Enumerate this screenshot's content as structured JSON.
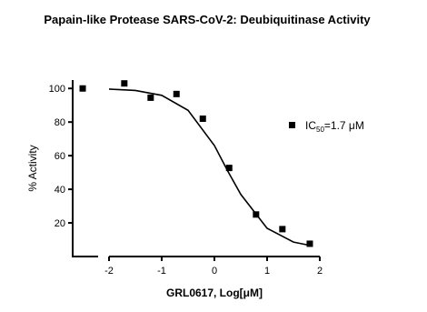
{
  "chart_data": {
    "type": "scatter",
    "title": "Papain-like Protease SARS-CoV-2: Deubiquitinase Activity",
    "x_label": "GRL0617, Log[μM]",
    "y_label": "% Activity",
    "xlim": [
      -2.69,
      2
    ],
    "ylim": [
      0,
      105
    ],
    "xticks": [
      -2,
      -1,
      0,
      1,
      2
    ],
    "yticks": [
      20,
      40,
      60,
      80,
      100
    ],
    "series": [
      {
        "name": [
          "IC",
          "50",
          "=1.7 μM"
        ],
        "color": "#000000",
        "x": [
          -2.5,
          -1.71,
          -1.21,
          -0.72,
          -0.22,
          0.28,
          0.79,
          1.29,
          1.81
        ],
        "values": [
          100,
          103,
          94.5,
          96.7,
          82,
          52.7,
          25,
          16.3,
          7.6
        ]
      },
      {
        "type": "line",
        "color": "#000000",
        "x": [
          -2,
          -1.5,
          -1,
          -0.5,
          0,
          0.25,
          0.5,
          1,
          1.5,
          1.8
        ],
        "values": [
          99.6,
          98.8,
          95.9,
          87,
          66,
          51,
          37,
          16.8,
          8.6,
          6.7
        ]
      }
    ]
  }
}
